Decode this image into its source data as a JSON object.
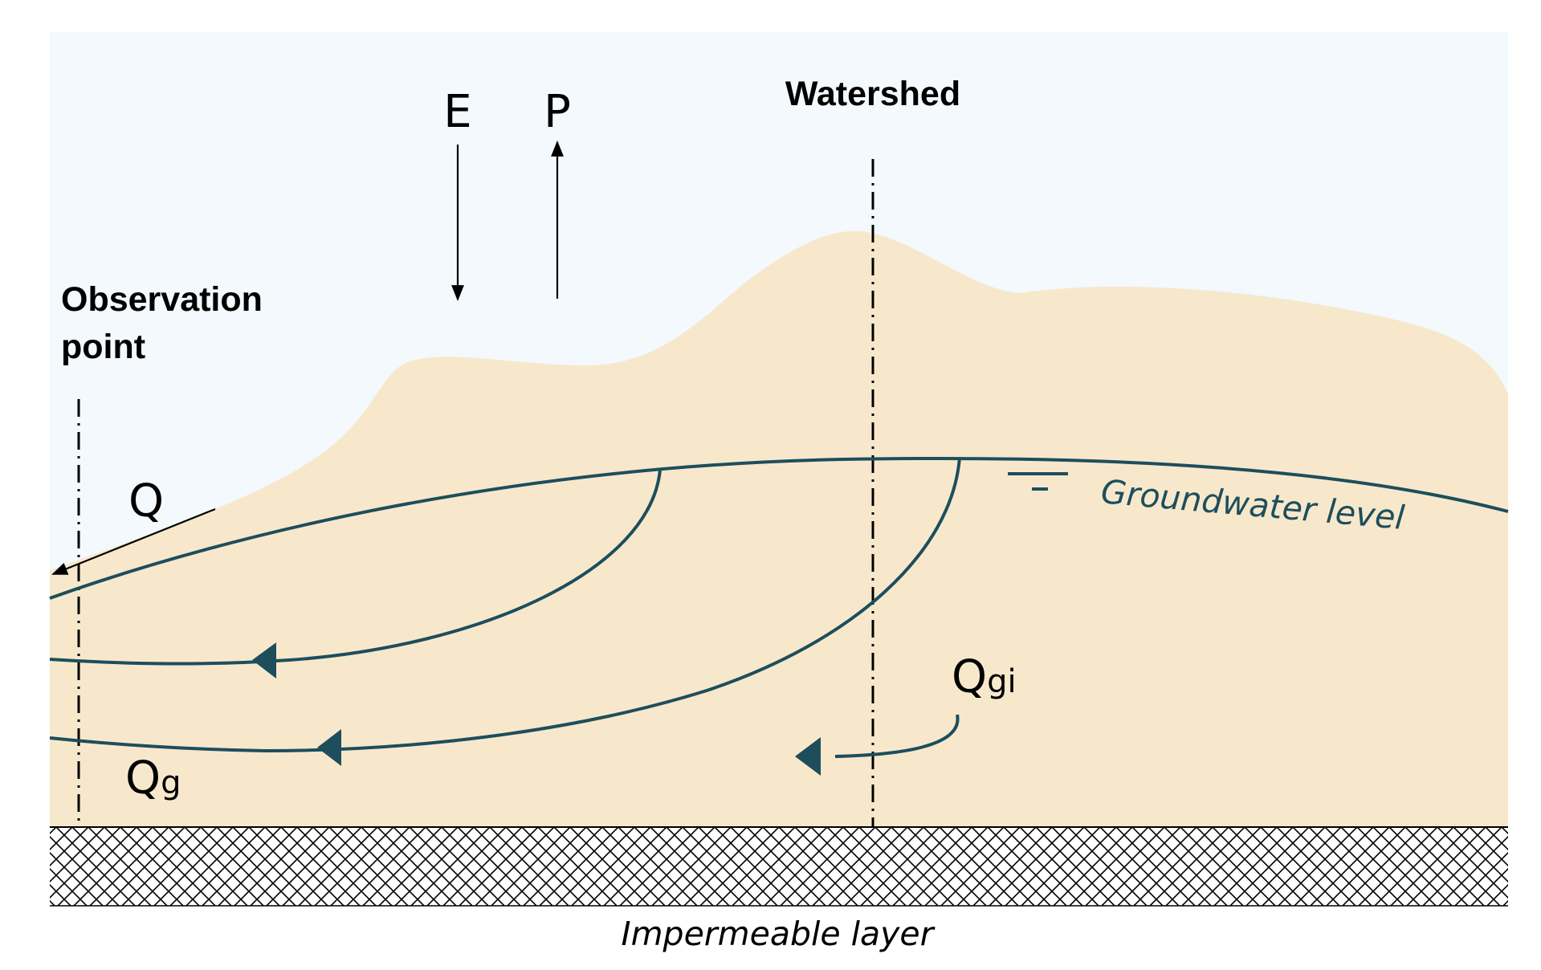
{
  "labels": {
    "evaporation": "E",
    "precipitation": "P",
    "watershed": "Watershed",
    "observation_line1": "Observation",
    "observation_line2": "point",
    "discharge": "Q",
    "groundwater_level": "Groundwater level",
    "qgi_main": "Q",
    "qgi_sub": "gi",
    "qg_main": "Q",
    "qg_sub": "g",
    "impermeable_layer": "Impermeable layer"
  },
  "colors": {
    "sky": "#f3f9fd",
    "soil": "#f7e8cc",
    "flow_line": "#1d4e5c",
    "hatch": "#000000",
    "text": "#000000"
  }
}
